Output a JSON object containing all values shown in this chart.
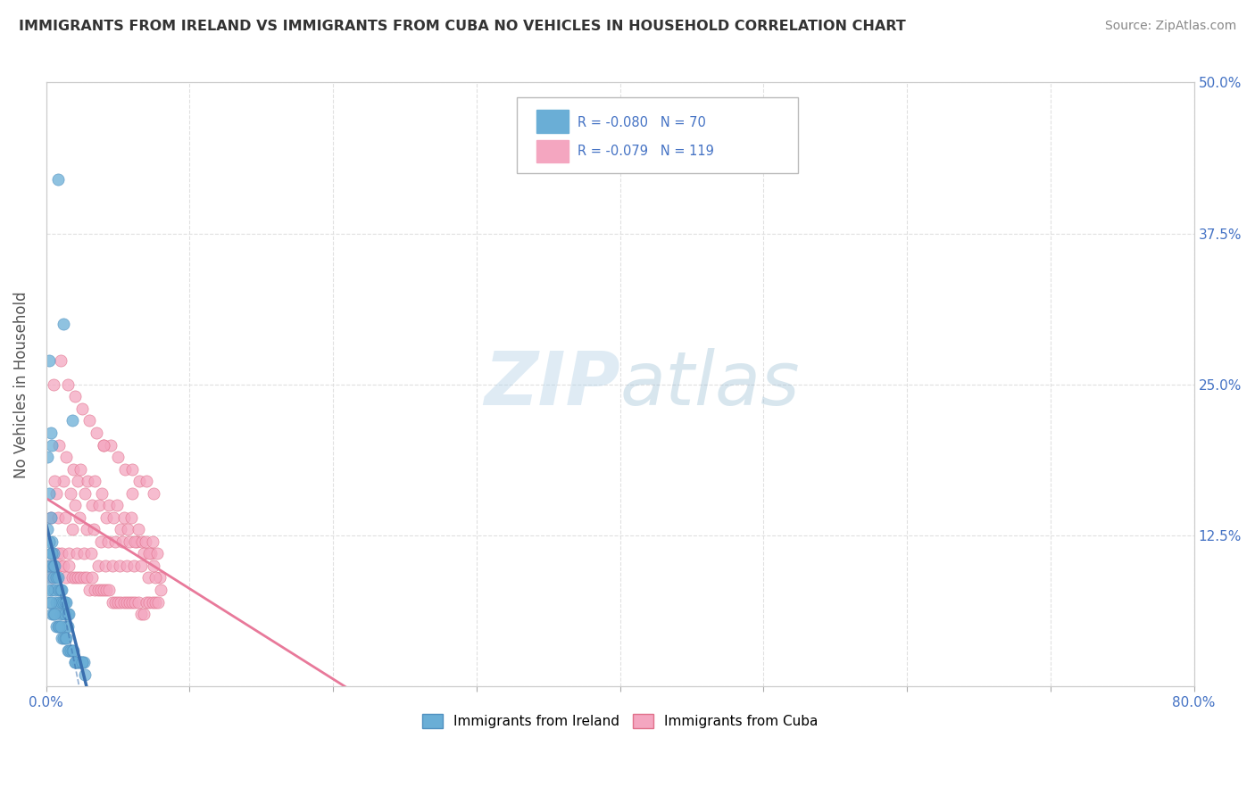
{
  "title": "IMMIGRANTS FROM IRELAND VS IMMIGRANTS FROM CUBA NO VEHICLES IN HOUSEHOLD CORRELATION CHART",
  "source": "Source: ZipAtlas.com",
  "ylabel": "No Vehicles in Household",
  "legend_r_ireland": "R = -0.080",
  "legend_n_ireland": "N = 70",
  "legend_r_cuba": "R = -0.079",
  "legend_n_cuba": "N = 119",
  "ireland_color": "#6aaed6",
  "cuba_color": "#f4a6c0",
  "ireland_edge": "#5090c0",
  "cuba_edge": "#e0708a",
  "trend_ireland_color": "#3a6faf",
  "trend_cuba_color": "#e8799a",
  "background_color": "#ffffff",
  "grid_color": "#dddddd",
  "title_color": "#333333",
  "source_color": "#888888",
  "axis_label_color": "#4472c4",
  "xlim": [
    0.0,
    0.8
  ],
  "ylim": [
    0.0,
    0.5
  ],
  "ireland_x": [
    0.001,
    0.002,
    0.003,
    0.004,
    0.005,
    0.001,
    0.002,
    0.003,
    0.004,
    0.005,
    0.006,
    0.007,
    0.008,
    0.009,
    0.01,
    0.011,
    0.012,
    0.013,
    0.014,
    0.015,
    0.002,
    0.003,
    0.004,
    0.001,
    0.002,
    0.003,
    0.004,
    0.005,
    0.006,
    0.007,
    0.008,
    0.009,
    0.01,
    0.011,
    0.012,
    0.013,
    0.014,
    0.015,
    0.016,
    0.017,
    0.018,
    0.019,
    0.02,
    0.021,
    0.022,
    0.023,
    0.024,
    0.025,
    0.026,
    0.027,
    0.001,
    0.002,
    0.003,
    0.004,
    0.005,
    0.006,
    0.007,
    0.008,
    0.009,
    0.01,
    0.011,
    0.012,
    0.013,
    0.014,
    0.015,
    0.016,
    0.02,
    0.025,
    0.012,
    0.018
  ],
  "ireland_y": [
    0.19,
    0.16,
    0.14,
    0.12,
    0.11,
    0.1,
    0.09,
    0.1,
    0.08,
    0.09,
    0.08,
    0.07,
    0.42,
    0.07,
    0.06,
    0.07,
    0.06,
    0.06,
    0.05,
    0.05,
    0.27,
    0.21,
    0.2,
    0.08,
    0.07,
    0.07,
    0.06,
    0.06,
    0.06,
    0.05,
    0.05,
    0.05,
    0.05,
    0.04,
    0.04,
    0.04,
    0.04,
    0.03,
    0.03,
    0.03,
    0.03,
    0.03,
    0.02,
    0.02,
    0.02,
    0.02,
    0.02,
    0.02,
    0.02,
    0.01,
    0.13,
    0.12,
    0.11,
    0.11,
    0.1,
    0.1,
    0.09,
    0.09,
    0.08,
    0.08,
    0.08,
    0.07,
    0.07,
    0.07,
    0.06,
    0.06,
    0.02,
    0.02,
    0.3,
    0.22
  ],
  "cuba_x": [
    0.002,
    0.004,
    0.006,
    0.008,
    0.01,
    0.012,
    0.014,
    0.016,
    0.018,
    0.02,
    0.022,
    0.024,
    0.026,
    0.028,
    0.03,
    0.032,
    0.034,
    0.036,
    0.038,
    0.04,
    0.042,
    0.044,
    0.046,
    0.048,
    0.05,
    0.052,
    0.054,
    0.056,
    0.058,
    0.06,
    0.062,
    0.064,
    0.066,
    0.068,
    0.07,
    0.072,
    0.074,
    0.076,
    0.078,
    0.08,
    0.005,
    0.01,
    0.015,
    0.02,
    0.025,
    0.03,
    0.035,
    0.04,
    0.045,
    0.05,
    0.055,
    0.06,
    0.065,
    0.07,
    0.075,
    0.003,
    0.008,
    0.013,
    0.018,
    0.023,
    0.028,
    0.033,
    0.038,
    0.043,
    0.048,
    0.053,
    0.058,
    0.063,
    0.068,
    0.073,
    0.007,
    0.012,
    0.017,
    0.022,
    0.027,
    0.032,
    0.037,
    0.042,
    0.047,
    0.052,
    0.057,
    0.062,
    0.067,
    0.072,
    0.077,
    0.009,
    0.014,
    0.019,
    0.024,
    0.029,
    0.034,
    0.039,
    0.044,
    0.049,
    0.054,
    0.059,
    0.064,
    0.069,
    0.074,
    0.079,
    0.011,
    0.016,
    0.021,
    0.026,
    0.031,
    0.036,
    0.041,
    0.046,
    0.051,
    0.056,
    0.061,
    0.066,
    0.071,
    0.076,
    0.006,
    0.02,
    0.04,
    0.06,
    0.075
  ],
  "cuba_y": [
    0.1,
    0.09,
    0.1,
    0.11,
    0.1,
    0.1,
    0.09,
    0.1,
    0.09,
    0.09,
    0.09,
    0.09,
    0.09,
    0.09,
    0.08,
    0.09,
    0.08,
    0.08,
    0.08,
    0.08,
    0.08,
    0.08,
    0.07,
    0.07,
    0.07,
    0.07,
    0.07,
    0.07,
    0.07,
    0.07,
    0.07,
    0.07,
    0.06,
    0.06,
    0.07,
    0.07,
    0.07,
    0.07,
    0.07,
    0.08,
    0.25,
    0.27,
    0.25,
    0.24,
    0.23,
    0.22,
    0.21,
    0.2,
    0.2,
    0.19,
    0.18,
    0.18,
    0.17,
    0.17,
    0.16,
    0.14,
    0.14,
    0.14,
    0.13,
    0.14,
    0.13,
    0.13,
    0.12,
    0.12,
    0.12,
    0.12,
    0.12,
    0.12,
    0.11,
    0.11,
    0.16,
    0.17,
    0.16,
    0.17,
    0.16,
    0.15,
    0.15,
    0.14,
    0.14,
    0.13,
    0.13,
    0.12,
    0.12,
    0.11,
    0.11,
    0.2,
    0.19,
    0.18,
    0.18,
    0.17,
    0.17,
    0.16,
    0.15,
    0.15,
    0.14,
    0.14,
    0.13,
    0.12,
    0.12,
    0.09,
    0.11,
    0.11,
    0.11,
    0.11,
    0.11,
    0.1,
    0.1,
    0.1,
    0.1,
    0.1,
    0.1,
    0.1,
    0.09,
    0.09,
    0.17,
    0.15,
    0.2,
    0.16,
    0.1
  ]
}
